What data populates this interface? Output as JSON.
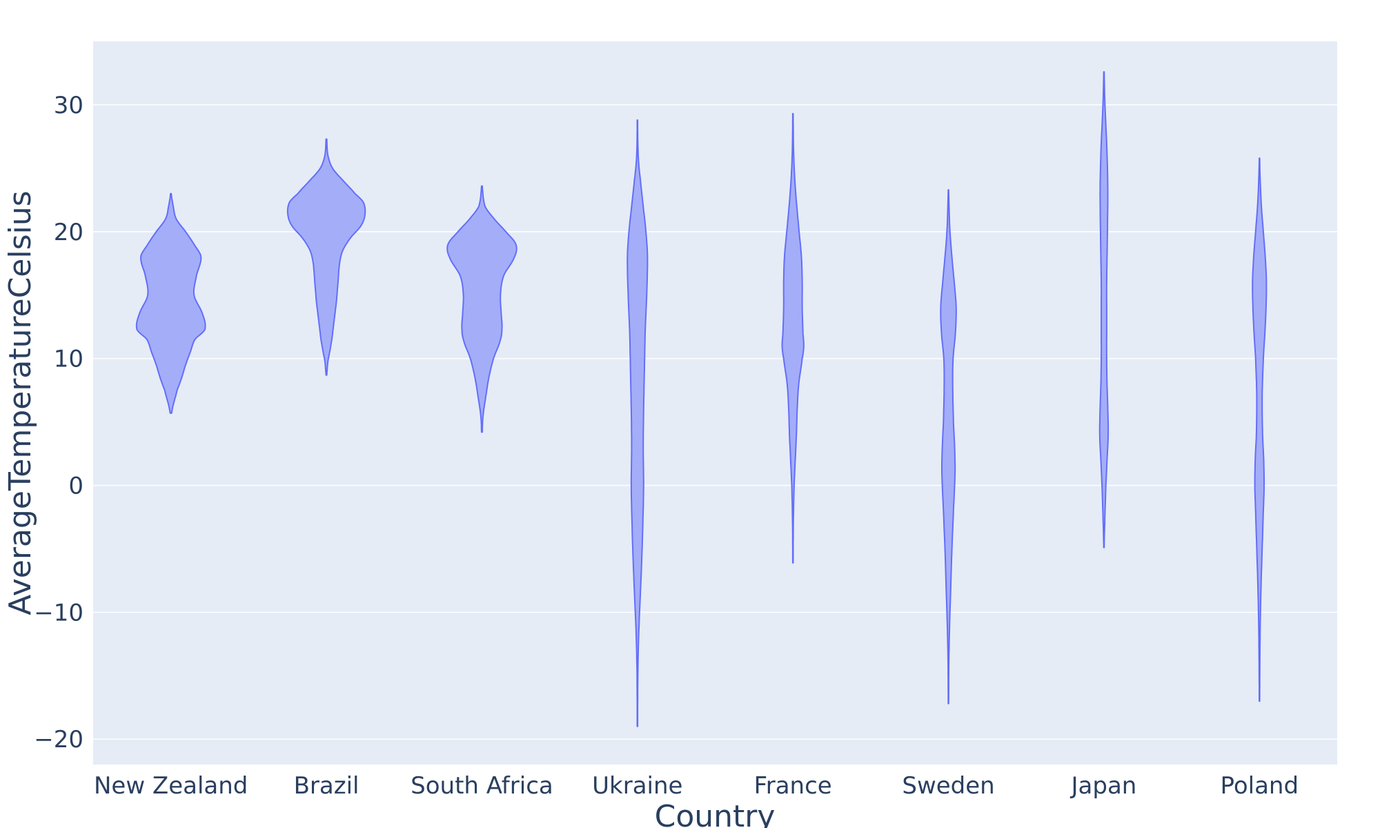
{
  "chart_data": {
    "type": "violin",
    "xlabel": "Country",
    "ylabel": "AverageTemperatureCelsius",
    "ylim": [
      -22,
      35
    ],
    "yticks": [
      30,
      20,
      10,
      0,
      -10,
      -20
    ],
    "ytick_labels": [
      "30",
      "20",
      "10",
      "0",
      "−10",
      "−20"
    ],
    "grid": true,
    "categories": [
      "New Zealand",
      "Brazil",
      "South Africa",
      "Ukraine",
      "France",
      "Sweden",
      "Japan",
      "Poland"
    ],
    "series": [
      {
        "category": "New Zealand",
        "min": 5.7,
        "max": 23.0,
        "profile": [
          [
            5.7,
            0.02
          ],
          [
            7.5,
            0.16
          ],
          [
            8.5,
            0.28
          ],
          [
            9.5,
            0.38
          ],
          [
            10.5,
            0.5
          ],
          [
            11.5,
            0.62
          ],
          [
            12.3,
            0.88
          ],
          [
            13.5,
            0.82
          ],
          [
            15,
            0.6
          ],
          [
            16.5,
            0.66
          ],
          [
            18,
            0.78
          ],
          [
            19,
            0.6
          ],
          [
            20,
            0.38
          ],
          [
            21,
            0.14
          ],
          [
            22,
            0.06
          ],
          [
            23.0,
            0.01
          ]
        ]
      },
      {
        "category": "Brazil",
        "min": 8.7,
        "max": 27.3,
        "profile": [
          [
            8.7,
            0.01
          ],
          [
            9.8,
            0.04
          ],
          [
            10.6,
            0.09
          ],
          [
            11.5,
            0.14
          ],
          [
            12.5,
            0.18
          ],
          [
            13.5,
            0.22
          ],
          [
            14.5,
            0.26
          ],
          [
            16,
            0.3
          ],
          [
            17.5,
            0.34
          ],
          [
            18.5,
            0.42
          ],
          [
            19.5,
            0.62
          ],
          [
            20.5,
            0.9
          ],
          [
            21.4,
            1.0
          ],
          [
            22.3,
            0.96
          ],
          [
            23,
            0.74
          ],
          [
            24,
            0.44
          ],
          [
            25,
            0.16
          ],
          [
            26,
            0.04
          ],
          [
            27.3,
            0.01
          ]
        ]
      },
      {
        "category": "South Africa",
        "min": 4.2,
        "max": 23.6,
        "profile": [
          [
            4.2,
            0.01
          ],
          [
            5.5,
            0.03
          ],
          [
            7,
            0.1
          ],
          [
            8.5,
            0.18
          ],
          [
            10,
            0.3
          ],
          [
            11.5,
            0.48
          ],
          [
            12.5,
            0.52
          ],
          [
            13.5,
            0.5
          ],
          [
            15,
            0.48
          ],
          [
            16.5,
            0.56
          ],
          [
            18,
            0.84
          ],
          [
            19,
            0.88
          ],
          [
            20,
            0.62
          ],
          [
            21,
            0.32
          ],
          [
            22,
            0.08
          ],
          [
            23.6,
            0.01
          ]
        ]
      },
      {
        "category": "Ukraine",
        "min": -19.0,
        "max": 28.8,
        "profile": [
          [
            -19,
            0.005
          ],
          [
            -15,
            0.01
          ],
          [
            -12,
            0.03
          ],
          [
            -9,
            0.07
          ],
          [
            -6,
            0.11
          ],
          [
            -3,
            0.14
          ],
          [
            0,
            0.16
          ],
          [
            3,
            0.15
          ],
          [
            6,
            0.16
          ],
          [
            9,
            0.18
          ],
          [
            12,
            0.2
          ],
          [
            15,
            0.24
          ],
          [
            18,
            0.26
          ],
          [
            20,
            0.22
          ],
          [
            22,
            0.15
          ],
          [
            24,
            0.08
          ],
          [
            25.5,
            0.03
          ],
          [
            27,
            0.01
          ],
          [
            28.8,
            0.005
          ]
        ]
      },
      {
        "category": "France",
        "min": -6.1,
        "max": 29.3,
        "profile": [
          [
            -6.1,
            0.005
          ],
          [
            -3,
            0.01
          ],
          [
            0,
            0.03
          ],
          [
            2,
            0.06
          ],
          [
            4,
            0.09
          ],
          [
            6,
            0.11
          ],
          [
            8,
            0.15
          ],
          [
            10,
            0.24
          ],
          [
            11,
            0.28
          ],
          [
            12,
            0.26
          ],
          [
            14,
            0.24
          ],
          [
            16,
            0.24
          ],
          [
            18,
            0.22
          ],
          [
            20,
            0.16
          ],
          [
            22,
            0.1
          ],
          [
            24,
            0.05
          ],
          [
            26,
            0.02
          ],
          [
            27.5,
            0.01
          ],
          [
            29.3,
            0.005
          ]
        ]
      },
      {
        "category": "Sweden",
        "min": -17.2,
        "max": 23.3,
        "profile": [
          [
            -17.2,
            0.005
          ],
          [
            -14,
            0.01
          ],
          [
            -11,
            0.03
          ],
          [
            -8,
            0.06
          ],
          [
            -5,
            0.09
          ],
          [
            -2,
            0.13
          ],
          [
            1,
            0.17
          ],
          [
            3,
            0.16
          ],
          [
            5,
            0.13
          ],
          [
            8,
            0.11
          ],
          [
            10,
            0.12
          ],
          [
            12,
            0.18
          ],
          [
            14,
            0.2
          ],
          [
            16,
            0.15
          ],
          [
            18,
            0.09
          ],
          [
            20,
            0.04
          ],
          [
            21.5,
            0.02
          ],
          [
            23.3,
            0.005
          ]
        ]
      },
      {
        "category": "Japan",
        "min": -4.9,
        "max": 32.6,
        "profile": [
          [
            -4.9,
            0.005
          ],
          [
            -3,
            0.02
          ],
          [
            0,
            0.05
          ],
          [
            2,
            0.08
          ],
          [
            4,
            0.11
          ],
          [
            6,
            0.1
          ],
          [
            8,
            0.08
          ],
          [
            10,
            0.07
          ],
          [
            12,
            0.07
          ],
          [
            14,
            0.07
          ],
          [
            16,
            0.07
          ],
          [
            18,
            0.08
          ],
          [
            20,
            0.09
          ],
          [
            23,
            0.1
          ],
          [
            25,
            0.09
          ],
          [
            27,
            0.07
          ],
          [
            29,
            0.04
          ],
          [
            30.5,
            0.02
          ],
          [
            32.6,
            0.005
          ]
        ]
      },
      {
        "category": "Poland",
        "min": -17.0,
        "max": 25.8,
        "profile": [
          [
            -17,
            0.005
          ],
          [
            -14,
            0.01
          ],
          [
            -11,
            0.02
          ],
          [
            -8,
            0.04
          ],
          [
            -5,
            0.07
          ],
          [
            -2,
            0.1
          ],
          [
            0,
            0.12
          ],
          [
            2,
            0.11
          ],
          [
            4,
            0.08
          ],
          [
            7,
            0.07
          ],
          [
            10,
            0.1
          ],
          [
            12,
            0.14
          ],
          [
            14,
            0.17
          ],
          [
            16,
            0.18
          ],
          [
            18,
            0.15
          ],
          [
            20,
            0.1
          ],
          [
            22,
            0.05
          ],
          [
            24,
            0.02
          ],
          [
            25.8,
            0.005
          ]
        ]
      }
    ],
    "colors": {
      "fill": "#a4adf8",
      "line": "#636efa",
      "plot_bg": "#e5ecf6",
      "text": "#2a3f5f"
    }
  }
}
